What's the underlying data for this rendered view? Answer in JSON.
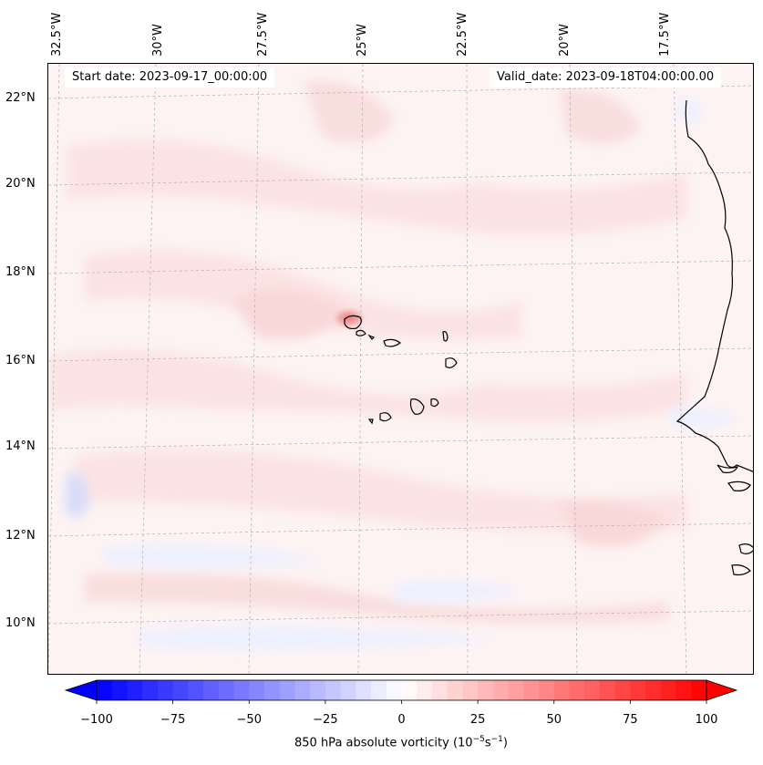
{
  "map": {
    "title_left": "Start date: 2023-09-17_00:00:00",
    "title_right": "Valid_date: 2023-09-18T04:00:00.00",
    "lat_labels": [
      "22°N",
      "20°N",
      "18°N",
      "16°N",
      "14°N",
      "12°N",
      "10°N"
    ],
    "lon_labels": [
      "32.5°W",
      "30°W",
      "27.5°W",
      "25°W",
      "22.5°W",
      "20°W",
      "17.5°W"
    ],
    "extent": {
      "lon_min": -32.6,
      "lon_max": -16.0,
      "lat_min": 8.8,
      "lat_max": 22.8
    },
    "features": [
      "Cape Verde islands",
      "West African coastline (Senegal, Mauritania, Gambia, Guinea-Bissau)"
    ],
    "colors": {
      "ocean_background": "#fdf3f3",
      "light_positive": "#fbe3e3",
      "medium_positive": "#f9d0d0",
      "strong_positive": "#f08a8a",
      "light_negative": "#eef0ff",
      "medium_negative": "#d8dcfa",
      "coast": "#000000",
      "grid": "#b0b0b0"
    }
  },
  "colorbar": {
    "label_text": "850 hPa absolute vorticity (10",
    "label_exp1": "−5",
    "label_mid": "s",
    "label_exp2": "−1",
    "label_end": ")",
    "ticks": [
      "−100",
      "−75",
      "−50",
      "−25",
      "0",
      "25",
      "50",
      "75",
      "100"
    ],
    "vmin": -100,
    "vmax": 100,
    "levels": 40,
    "colormap": "bwr"
  }
}
